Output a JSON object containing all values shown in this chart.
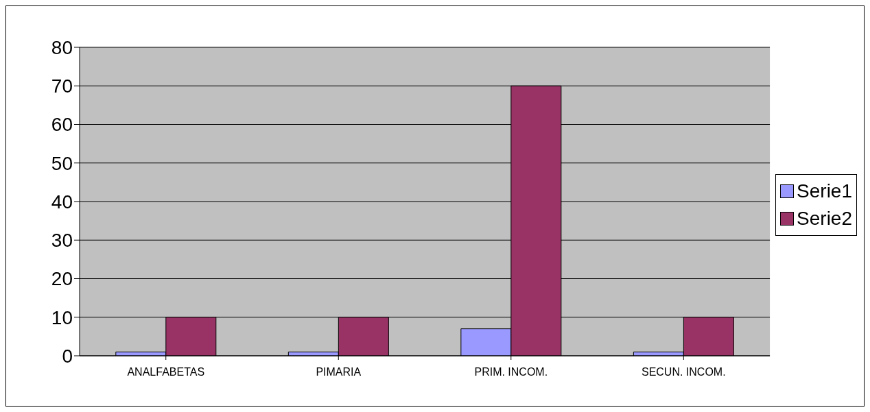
{
  "chart_data": {
    "type": "bar",
    "categories": [
      "ANALFABETAS",
      "PIMARIA",
      "PRIM. INCOM.",
      "SECUN. INCOM."
    ],
    "series": [
      {
        "name": "Serie1",
        "color": "#9999ff",
        "values": [
          1,
          1,
          7,
          1
        ]
      },
      {
        "name": "Serie2",
        "color": "#993366",
        "values": [
          10,
          10,
          70,
          10
        ]
      }
    ],
    "ylim": [
      0,
      80
    ],
    "yticks": [
      0,
      10,
      20,
      30,
      40,
      50,
      60,
      70,
      80
    ],
    "grid": "y",
    "legend": "right"
  }
}
